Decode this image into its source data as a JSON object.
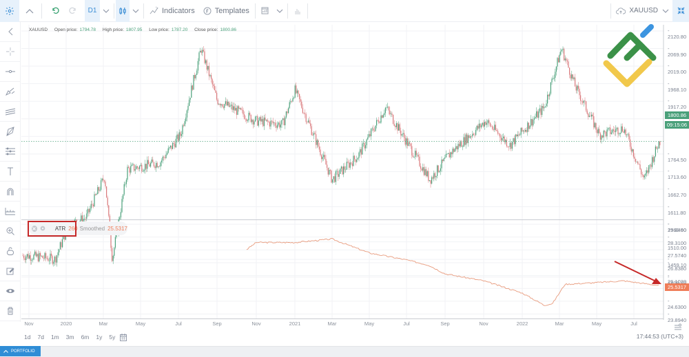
{
  "toolbar": {
    "timeframe": "D1",
    "indicators_label": "Indicators",
    "templates_label": "Templates",
    "symbol": "XAUUSD"
  },
  "legend": {
    "symbol": "XAUUSD",
    "open_label": "Open price:",
    "open": "1794.78",
    "high_label": "High price:",
    "high": "1807.95",
    "low_label": "Low price:",
    "low": "1787.20",
    "close_label": "Close price:",
    "close": "1800.86"
  },
  "price_axis": {
    "ticks": [
      "2120.80",
      "2069.90",
      "2019.00",
      "1968.10",
      "1917.20",
      "1866.30",
      "1815.40",
      "1764.50",
      "1713.60",
      "1662.70",
      "1611.80",
      "1560.90",
      "1510.00",
      "1459.10",
      "1408.20"
    ],
    "current_price": "1800.86",
    "countdown": "09:15:06",
    "tag_color": "#4aa07a"
  },
  "atr_axis": {
    "ticks": [
      "29.0460",
      "28.3100",
      "27.5740",
      "26.8380",
      "26.1020",
      "25.3660",
      "24.6300",
      "23.8940"
    ],
    "current_value": "25.5317",
    "tag_color": "#ef7d58"
  },
  "atr_legend": {
    "name": "ATR",
    "period": "260",
    "type": "Smoothed",
    "value": "25.5317"
  },
  "time_axis": {
    "labels": [
      "Nov",
      "2020",
      "Mar",
      "May",
      "Jul",
      "Sep",
      "Nov",
      "2021",
      "Mar",
      "May",
      "Jul",
      "Sep",
      "Nov",
      "2022",
      "Mar",
      "May",
      "Jul"
    ],
    "positions": [
      42,
      96,
      150,
      204,
      259,
      315,
      372,
      428,
      482,
      536,
      590,
      646,
      702,
      758,
      812,
      866,
      920
    ]
  },
  "range_buttons": [
    "1d",
    "7d",
    "1m",
    "3m",
    "6m",
    "1y",
    "5y"
  ],
  "clock": "17:44:53 (UTC+3)",
  "portfolio_label": "PORTFOLIO",
  "colors": {
    "up": "#4aa07a",
    "down": "#d9777a",
    "atr": "#e89a7c",
    "annotation": "#c62828"
  },
  "chart_data": [
    {
      "type": "candlestick",
      "title": "XAUUSD D1",
      "x_range": [
        "Oct 2019",
        "Aug 2022"
      ],
      "ylim": [
        1408.2,
        2120.8
      ],
      "key_points": [
        {
          "date": "Nov 2019",
          "price": 1470
        },
        {
          "date": "Dec 2019",
          "price": 1460
        },
        {
          "date": "Jan 2020",
          "price": 1560
        },
        {
          "date": "Feb 2020",
          "price": 1580
        },
        {
          "date": "Mar 2020 high",
          "price": 1700
        },
        {
          "date": "Mar 2020 low",
          "price": 1460
        },
        {
          "date": "Apr 2020",
          "price": 1720
        },
        {
          "date": "Jun 2020",
          "price": 1740
        },
        {
          "date": "Jul 2020",
          "price": 1820
        },
        {
          "date": "Aug 2020 peak",
          "price": 2070
        },
        {
          "date": "Sep 2020",
          "price": 1920
        },
        {
          "date": "Nov 2020",
          "price": 1860
        },
        {
          "date": "Dec 2020",
          "price": 1850
        },
        {
          "date": "Jan 2021",
          "price": 1950
        },
        {
          "date": "Mar 2021",
          "price": 1690
        },
        {
          "date": "Apr 2021",
          "price": 1760
        },
        {
          "date": "Jun 2021",
          "price": 1900
        },
        {
          "date": "Jul 2021",
          "price": 1800
        },
        {
          "date": "Aug 2021",
          "price": 1690
        },
        {
          "date": "Sep 2021",
          "price": 1770
        },
        {
          "date": "Nov 2021",
          "price": 1860
        },
        {
          "date": "Dec 2021",
          "price": 1790
        },
        {
          "date": "Feb 2022",
          "price": 1900
        },
        {
          "date": "Mar 2022 peak",
          "price": 2070
        },
        {
          "date": "Apr 2022",
          "price": 1960
        },
        {
          "date": "May 2022",
          "price": 1820
        },
        {
          "date": "Jun 2022",
          "price": 1840
        },
        {
          "date": "Jul 2022",
          "price": 1690
        },
        {
          "date": "Aug 2022",
          "price": 1800.86
        }
      ]
    },
    {
      "type": "line",
      "title": "ATR 260 Smoothed",
      "ylim": [
        23.894,
        29.046
      ],
      "points": [
        {
          "date": "Oct 2020",
          "value": 27.6
        },
        {
          "date": "Nov 2020",
          "value": 28.0
        },
        {
          "date": "Jan 2021",
          "value": 28.0
        },
        {
          "date": "Mar 2021",
          "value": 28.2
        },
        {
          "date": "May 2021",
          "value": 27.4
        },
        {
          "date": "Jul 2021",
          "value": 27.0
        },
        {
          "date": "Aug 2021",
          "value": 26.7
        },
        {
          "date": "Sep 2021",
          "value": 26.2
        },
        {
          "date": "Nov 2021",
          "value": 25.8
        },
        {
          "date": "Jan 2022",
          "value": 25.1
        },
        {
          "date": "Feb 2022",
          "value": 24.4
        },
        {
          "date": "Mar 2022",
          "value": 24.5
        },
        {
          "date": "Mar 2022 jump",
          "value": 25.6
        },
        {
          "date": "May 2022",
          "value": 25.7
        },
        {
          "date": "Jun 2022",
          "value": 25.8
        },
        {
          "date": "Aug 2022",
          "value": 25.5317
        }
      ]
    }
  ]
}
